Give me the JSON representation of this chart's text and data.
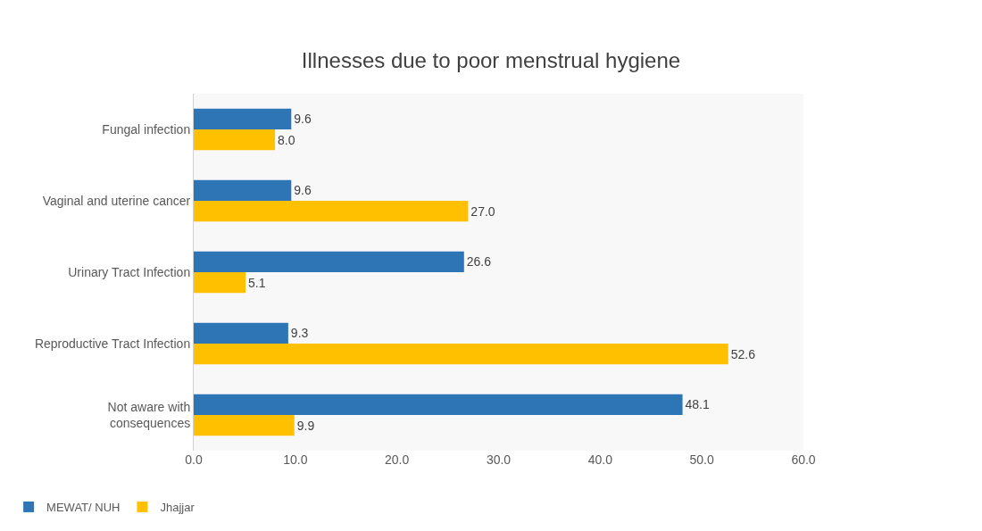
{
  "chart_data": {
    "type": "bar",
    "orientation": "horizontal",
    "title": "Illnesses due to poor menstrual hygiene",
    "categories": [
      "Fungal infection",
      "Vaginal and uterine cancer",
      "Urinary Tract Infection",
      "Reproductive Tract Infection",
      "Not aware with\nconsequences"
    ],
    "series": [
      {
        "name": "MEWAT/ NUH",
        "color": "#2e75b6",
        "values": [
          9.6,
          9.6,
          26.6,
          9.3,
          48.1
        ],
        "value_labels": [
          "9.6",
          "9.6",
          "26.6",
          "9.3",
          "48.1"
        ]
      },
      {
        "name": "Jhajjar",
        "color": "#ffc000",
        "values": [
          8.0,
          27.0,
          5.1,
          52.6,
          9.9
        ],
        "value_labels": [
          "8.0",
          "27.0",
          "5.1",
          "52.6",
          "9.9"
        ]
      }
    ],
    "xlim": [
      0,
      60
    ],
    "xticks": [
      {
        "value": 0,
        "label": "0.0"
      },
      {
        "value": 10,
        "label": "10.0"
      },
      {
        "value": 20,
        "label": "20.0"
      },
      {
        "value": 30,
        "label": "30.0"
      },
      {
        "value": 40,
        "label": "40.0"
      },
      {
        "value": 50,
        "label": "50.0"
      },
      {
        "value": 60,
        "label": "60.0"
      }
    ],
    "grid": false,
    "legend": "bottom left"
  }
}
